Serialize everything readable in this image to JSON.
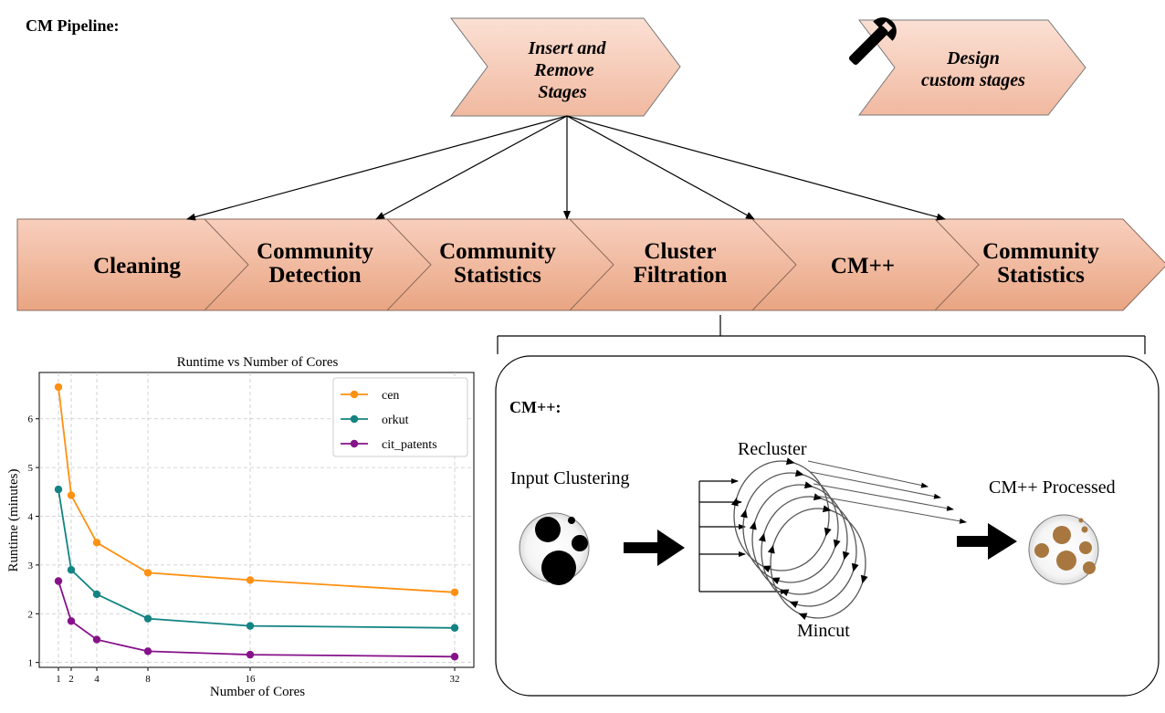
{
  "pipeline": {
    "title": "CM Pipeline:",
    "insert_box": [
      "Insert and",
      "Remove",
      "Stages"
    ],
    "design_box": [
      "Design",
      "custom stages"
    ],
    "stages": [
      {
        "lines": [
          "Cleaning"
        ]
      },
      {
        "lines": [
          "Community",
          "Detection"
        ]
      },
      {
        "lines": [
          "Community",
          "Statistics"
        ]
      },
      {
        "lines": [
          "Cluster",
          "Filtration"
        ]
      },
      {
        "lines": [
          "CM++"
        ]
      },
      {
        "lines": [
          "Community",
          "Statistics"
        ]
      }
    ],
    "icon": "wrench-icon"
  },
  "chart_data": {
    "type": "line",
    "title": "Runtime vs Number of Cores",
    "xlabel": "Number of Cores",
    "ylabel": "Runtime (minutes)",
    "x": [
      1,
      2,
      4,
      8,
      16,
      32
    ],
    "xticks": [
      "1",
      "2",
      "4",
      "8",
      "16",
      "32"
    ],
    "yticks": [
      "1",
      "2",
      "3",
      "4",
      "5",
      "6"
    ],
    "xlim": [
      -0.5,
      33.5
    ],
    "ylim": [
      0.9,
      6.95
    ],
    "grid": true,
    "legend_position": "top-right",
    "series": [
      {
        "name": "cen",
        "color": "#ff9011",
        "values": [
          6.65,
          4.43,
          3.46,
          2.84,
          2.69,
          2.44
        ]
      },
      {
        "name": "orkut",
        "color": "#138383",
        "values": [
          4.55,
          2.9,
          2.4,
          1.9,
          1.75,
          1.71
        ]
      },
      {
        "name": "cit_patents",
        "color": "#86128a",
        "values": [
          2.67,
          1.85,
          1.47,
          1.23,
          1.16,
          1.12
        ]
      }
    ]
  },
  "cm": {
    "title": "CM++:",
    "input_label": "Input Clustering",
    "recluster_label": "Recluster",
    "mincut_label": "Mincut",
    "output_label": "CM++ Processed"
  },
  "colors": {
    "stage_fill_top": "#f8cfbd",
    "stage_fill_bottom": "#e9a583",
    "processed_clusters": "#a87740"
  }
}
